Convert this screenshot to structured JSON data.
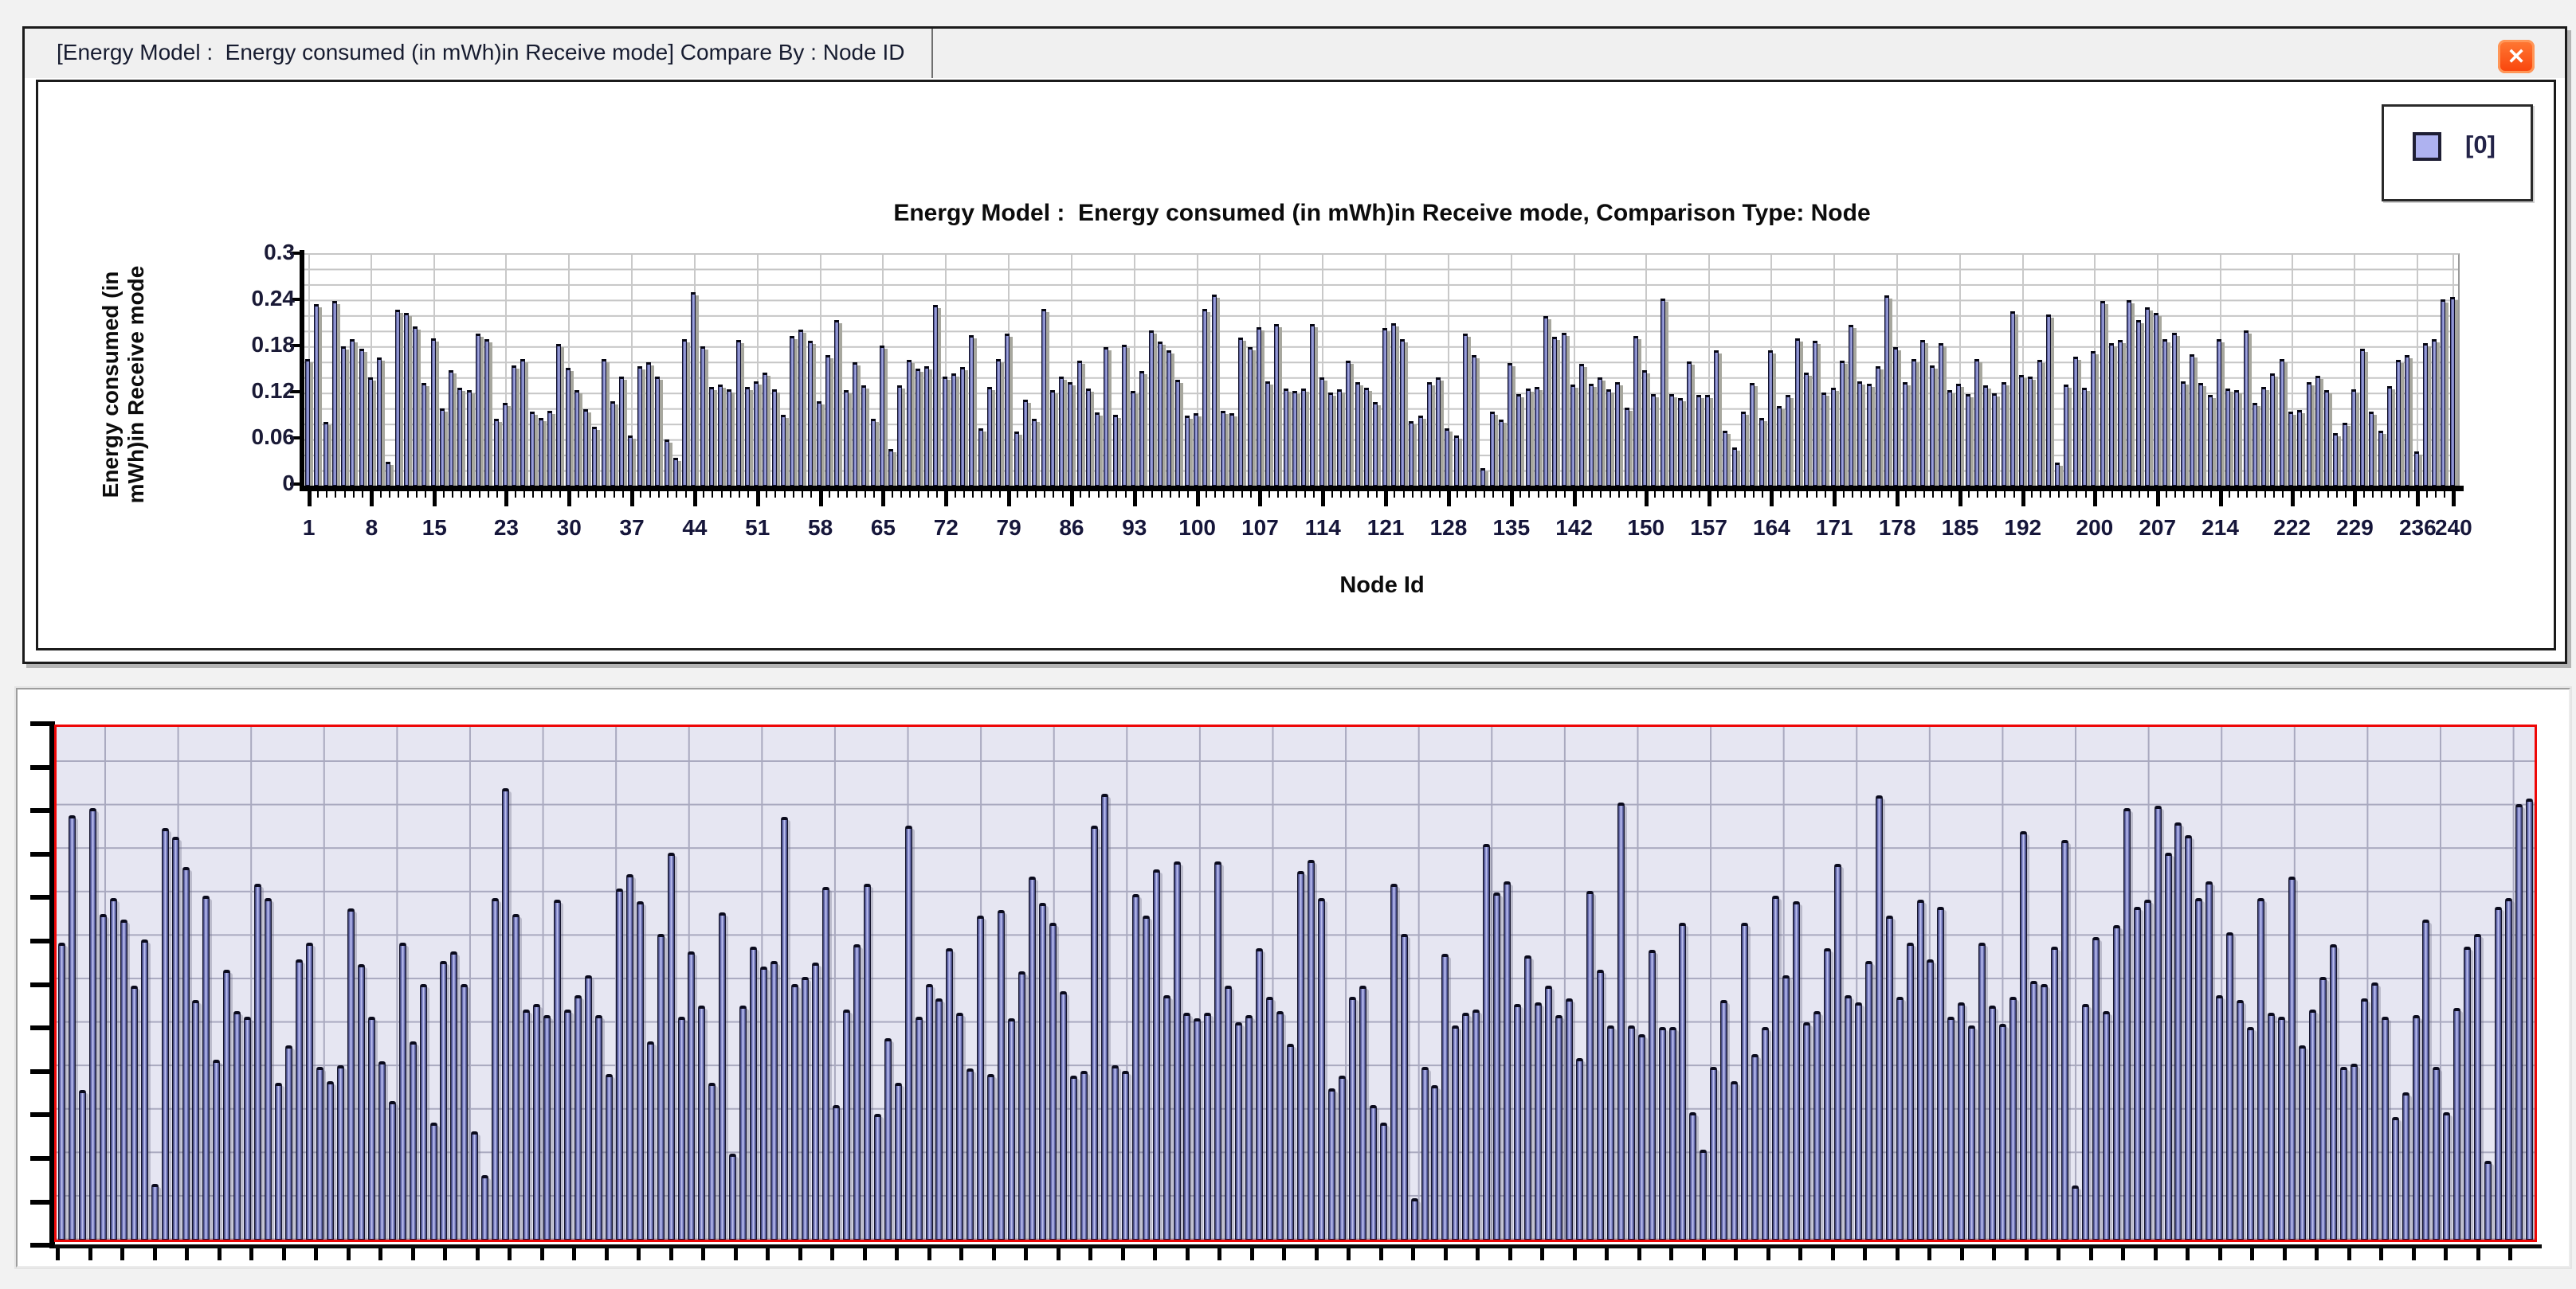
{
  "window": {
    "tab_title": "[Energy Model :  Energy consumed (in mWh)in Receive mode] Compare By : Node ID",
    "close_glyph": "✕"
  },
  "top_chart": {
    "title": "Energy Model :  Energy consumed (in mWh)in Receive mode, Comparison Type: Node",
    "ylabel_line1": "Energy consumed (in",
    "ylabel_line2": "mWh)in Receive mode",
    "xlabel": "Node Id",
    "legend": {
      "swatch_color": "#aeb2f0",
      "label": "[0]"
    },
    "y_ticks": [
      "0.3",
      "0.24",
      "0.18",
      "0.12",
      "0.06",
      "0"
    ]
  },
  "chart_data": {
    "type": "bar",
    "title": "Energy Model :  Energy consumed (in mWh)in Receive mode, Comparison Type: Node",
    "xlabel": "Node Id",
    "ylabel": "Energy consumed (in mWh)in Receive mode",
    "legend_entries": [
      "[0]"
    ],
    "x_range": [
      1,
      240
    ],
    "ylim": [
      0,
      0.3
    ],
    "y_major_step": 0.06,
    "y_grid_step": 0.02,
    "grid": true,
    "legend_position": "top-right",
    "x_ticks": [
      1,
      8,
      15,
      23,
      30,
      37,
      44,
      51,
      58,
      65,
      72,
      79,
      86,
      93,
      100,
      107,
      114,
      121,
      128,
      135,
      142,
      150,
      157,
      164,
      171,
      178,
      185,
      192,
      200,
      207,
      214,
      222,
      229,
      236,
      240
    ],
    "values": [
      0.165,
      0.236,
      0.083,
      0.24,
      0.181,
      0.19,
      0.178,
      0.141,
      0.167,
      0.031,
      0.229,
      0.224,
      0.207,
      0.133,
      0.191,
      0.1,
      0.15,
      0.127,
      0.124,
      0.198,
      0.19,
      0.087,
      0.108,
      0.156,
      0.165,
      0.096,
      0.088,
      0.097,
      0.184,
      0.153,
      0.124,
      0.099,
      0.077,
      0.165,
      0.11,
      0.142,
      0.065,
      0.155,
      0.16,
      0.142,
      0.06,
      0.036,
      0.19,
      0.251,
      0.181,
      0.128,
      0.131,
      0.125,
      0.189,
      0.128,
      0.136,
      0.147,
      0.125,
      0.092,
      0.195,
      0.203,
      0.188,
      0.11,
      0.17,
      0.215,
      0.124,
      0.16,
      0.13,
      0.087,
      0.182,
      0.048,
      0.13,
      0.163,
      0.152,
      0.155,
      0.235,
      0.142,
      0.146,
      0.154,
      0.196,
      0.075,
      0.128,
      0.164,
      0.198,
      0.07,
      0.112,
      0.087,
      0.23,
      0.124,
      0.142,
      0.134,
      0.162,
      0.126,
      0.095,
      0.18,
      0.092,
      0.183,
      0.123,
      0.149,
      0.202,
      0.187,
      0.176,
      0.138,
      0.091,
      0.094,
      0.23,
      0.248,
      0.097,
      0.094,
      0.192,
      0.18,
      0.206,
      0.136,
      0.21,
      0.126,
      0.123,
      0.126,
      0.21,
      0.141,
      0.121,
      0.125,
      0.162,
      0.135,
      0.127,
      0.109,
      0.205,
      0.211,
      0.19,
      0.084,
      0.091,
      0.135,
      0.141,
      0.075,
      0.065,
      0.198,
      0.17,
      0.023,
      0.096,
      0.086,
      0.159,
      0.119,
      0.126,
      0.128,
      0.22,
      0.193,
      0.199,
      0.131,
      0.158,
      0.132,
      0.141,
      0.125,
      0.134,
      0.101,
      0.194,
      0.15,
      0.119,
      0.243,
      0.119,
      0.114,
      0.161,
      0.118,
      0.118,
      0.176,
      0.071,
      0.05,
      0.096,
      0.133,
      0.088,
      0.176,
      0.103,
      0.118,
      0.191,
      0.147,
      0.188,
      0.121,
      0.127,
      0.162,
      0.209,
      0.136,
      0.132,
      0.155,
      0.247,
      0.18,
      0.135,
      0.165,
      0.189,
      0.156,
      0.185,
      0.124,
      0.132,
      0.119,
      0.165,
      0.13,
      0.12,
      0.135,
      0.227,
      0.144,
      0.142,
      0.163,
      0.222,
      0.03,
      0.131,
      0.168,
      0.127,
      0.175,
      0.24,
      0.185,
      0.189,
      0.241,
      0.215,
      0.232,
      0.225,
      0.19,
      0.199,
      0.136,
      0.171,
      0.133,
      0.118,
      0.19,
      0.126,
      0.124,
      0.202,
      0.108,
      0.128,
      0.146,
      0.164,
      0.096,
      0.098,
      0.134,
      0.143,
      0.124,
      0.068,
      0.082,
      0.125,
      0.178,
      0.096,
      0.071,
      0.129,
      0.163,
      0.17,
      0.044,
      0.185,
      0.19,
      0.242,
      0.245
    ]
  },
  "preview_chart": {
    "ylim": [
      0,
      0.285
    ],
    "plot_bg": "#e6e6f2",
    "border_color": "#ee0707",
    "x_tick_spacing_px": 40.5,
    "y_tick_spacing_px": 54.6
  },
  "colors": {
    "bar_face": "#888dd0",
    "bar_edge": "#10102a",
    "bar_side_3d": "#a7a79e",
    "close_button": "#f9430a",
    "tab_text": "#171c30",
    "gridline": "#c6c6c6"
  }
}
